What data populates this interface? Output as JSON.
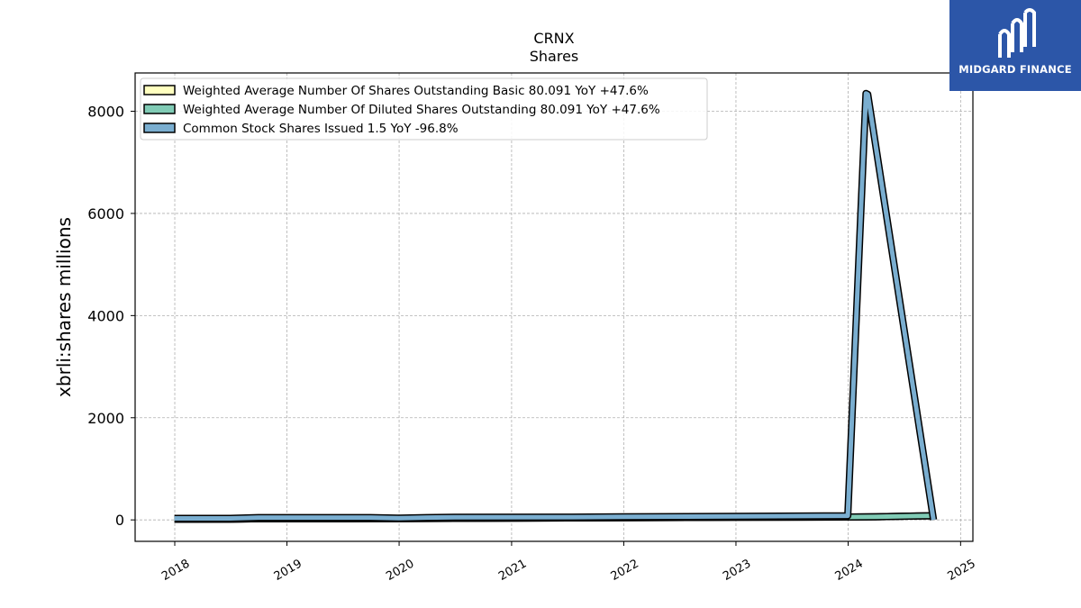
{
  "chart_data": {
    "type": "line",
    "title": "CRNX",
    "subtitle": "Shares",
    "ylabel": "xbrli:shares millions",
    "xlim": [
      "2017-08-25",
      "2025-02-10"
    ],
    "ylim": [
      -420,
      8750
    ],
    "yticks": [
      0,
      2000,
      4000,
      6000,
      8000
    ],
    "ytick_labels": [
      "0",
      "2000",
      "4000",
      "6000",
      "8000"
    ],
    "xticks": [
      "2018-01-01",
      "2019-01-01",
      "2020-01-01",
      "2021-01-01",
      "2022-01-01",
      "2023-01-01",
      "2024-01-01",
      "2025-01-01"
    ],
    "xtick_labels": [
      "2018",
      "2019",
      "2020",
      "2021",
      "2022",
      "2023",
      "2024",
      "2025"
    ],
    "grid": true,
    "legend_position": "top-left",
    "series": [
      {
        "name": "Weighted Average Number Of Shares Outstanding Basic  80.091 YoY +47.6%",
        "color": "#ffffbf",
        "x": [
          "2017-12-31",
          "2018-06-30",
          "2018-09-30",
          "2019-09-30",
          "2019-12-31",
          "2020-03-31",
          "2020-06-30",
          "2021-06-30",
          "2021-12-31",
          "2022-12-31",
          "2023-12-31",
          "2024-03-31",
          "2024-06-30",
          "2024-09-30"
        ],
        "values": [
          12,
          14,
          22,
          24,
          26,
          28,
          30,
          38,
          44,
          50,
          56,
          62,
          72,
          80.091
        ]
      },
      {
        "name": "Weighted Average Number Of Diluted Shares Outstanding  80.091 YoY +47.6%",
        "color": "#80cbb5",
        "x": [
          "2017-12-31",
          "2018-06-30",
          "2018-09-30",
          "2019-09-30",
          "2019-12-31",
          "2020-03-31",
          "2020-06-30",
          "2021-06-30",
          "2021-12-31",
          "2022-12-31",
          "2023-12-31",
          "2024-03-31",
          "2024-06-30",
          "2024-09-30"
        ],
        "values": [
          12,
          14,
          22,
          24,
          26,
          28,
          30,
          38,
          44,
          50,
          56,
          62,
          72,
          80.091
        ]
      },
      {
        "name": "Common Stock Shares Issued  1.5 YoY -96.8%",
        "color": "#7aaed0",
        "x": [
          "2017-12-31",
          "2018-06-30",
          "2018-09-30",
          "2019-09-30",
          "2019-12-31",
          "2020-03-31",
          "2020-06-30",
          "2021-06-30",
          "2021-12-31",
          "2022-12-31",
          "2023-12-31",
          "2024-02-28",
          "2024-03-05",
          "2024-10-05"
        ],
        "values": [
          30,
          30,
          45,
          45,
          35,
          45,
          50,
          55,
          60,
          70,
          80,
          8350,
          8330,
          1.5
        ]
      }
    ]
  },
  "logo": {
    "text": "MIDGARD FINANCE"
  }
}
